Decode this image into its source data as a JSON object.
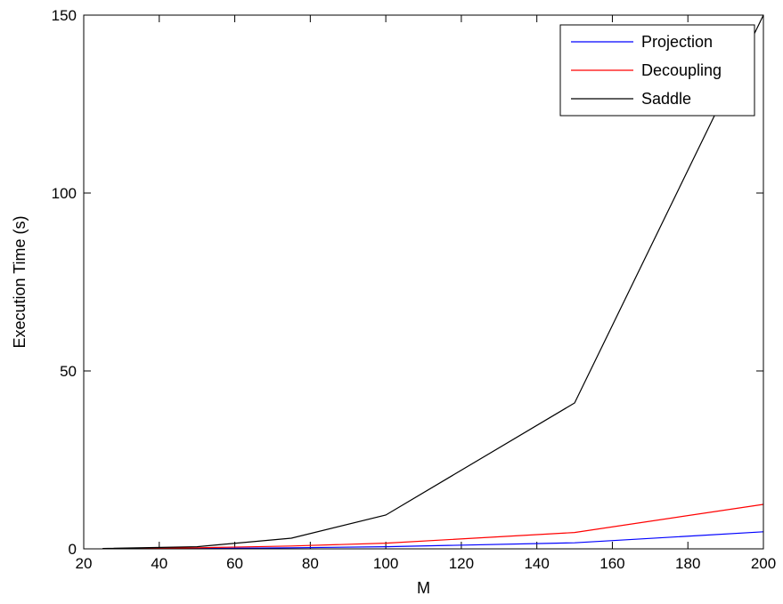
{
  "chart_data": {
    "type": "line",
    "xlabel": "M",
    "ylabel": "Execution Time (s)",
    "xlim": [
      20,
      200
    ],
    "ylim": [
      0,
      150
    ],
    "xticks": [
      20,
      40,
      60,
      80,
      100,
      120,
      140,
      160,
      180,
      200
    ],
    "yticks": [
      0,
      50,
      100,
      150
    ],
    "grid": false,
    "legend_position": "top-right",
    "x": [
      25,
      50,
      75,
      100,
      150,
      200
    ],
    "series": [
      {
        "name": "Projection",
        "color": "#0000ff",
        "values": [
          0.02,
          0.1,
          0.3,
          0.6,
          1.7,
          4.8
        ]
      },
      {
        "name": "Decoupling",
        "color": "#ff0000",
        "values": [
          0.05,
          0.3,
          0.8,
          1.6,
          4.6,
          12.5
        ]
      },
      {
        "name": "Saddle",
        "color": "#000000",
        "values": [
          0.1,
          0.6,
          3.0,
          9.5,
          41.0,
          150.0
        ]
      }
    ]
  }
}
